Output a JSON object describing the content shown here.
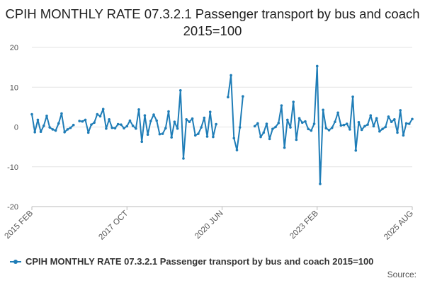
{
  "chart_data": {
    "type": "line",
    "title": "CPIH MONTHLY RATE 07.3.2.1 Passenger transport by bus and coach 2015=100",
    "xlabel": "",
    "ylabel": "",
    "ylim": [
      -20,
      20
    ],
    "yticks": [
      20,
      10,
      0,
      -10,
      -20
    ],
    "xtick_labels": [
      "2015 FEB",
      "2017 OCT",
      "2020 JUN",
      "2023 FEB",
      "2025 AUG"
    ],
    "start": "2015 FEB",
    "grid": true,
    "legend_position": "bottom-left",
    "color": "#1f7db7",
    "series": [
      {
        "name": "CPIH MONTHLY RATE 07.3.2.1 Passenger transport by bus and coach 2015=100",
        "values": [
          3.2,
          -1.3,
          1.8,
          -1.2,
          0.3,
          2.8,
          -0.1,
          -0.6,
          -0.9,
          0.9,
          3.4,
          -1.3,
          -0.6,
          -0.2,
          0.5,
          null,
          1.5,
          1.4,
          1.8,
          -1.4,
          0.6,
          1.1,
          3.2,
          2.7,
          4.5,
          -0.4,
          1.9,
          -0.2,
          -0.3,
          0.7,
          0.6,
          -0.3,
          0.2,
          1.6,
          0.3,
          -0.4,
          4.4,
          -3.7,
          2.9,
          -1.9,
          1.5,
          3.1,
          1.6,
          -1.8,
          -1.7,
          -0.3,
          3.9,
          -2.6,
          1.3,
          -0.4,
          9.2,
          -7.9,
          1.9,
          1.3,
          2.1,
          -2.1,
          -1.7,
          -0.1,
          2.3,
          -2.4,
          3.8,
          -2.5,
          0.7,
          null,
          null,
          null,
          7.5,
          13.0,
          -2.8,
          -5.8,
          -0.1,
          7.7,
          null,
          null,
          null,
          0.2,
          0.9,
          -2.5,
          -1.4,
          0.8,
          -3.0,
          -0.5,
          0.0,
          1.0,
          5.4,
          -5.2,
          1.8,
          -0.1,
          6.3,
          -3.2,
          2.2,
          1.1,
          1.4,
          -0.5,
          -0.9,
          0.8,
          15.3,
          -14.3,
          4.3,
          -0.3,
          -0.8,
          -0.2,
          1.3,
          3.6,
          0.4,
          0.5,
          0.8,
          -0.6,
          7.6,
          -5.9,
          1.2,
          -0.7,
          0.2,
          0.6,
          2.9,
          0.2,
          2.2,
          -1.1,
          -0.5,
          0.0,
          2.6,
          1.3,
          1.9,
          -1.4,
          4.2,
          -2.1,
          0.9,
          0.8,
          2.0
        ]
      }
    ]
  },
  "footer": {
    "source": "Source:"
  }
}
